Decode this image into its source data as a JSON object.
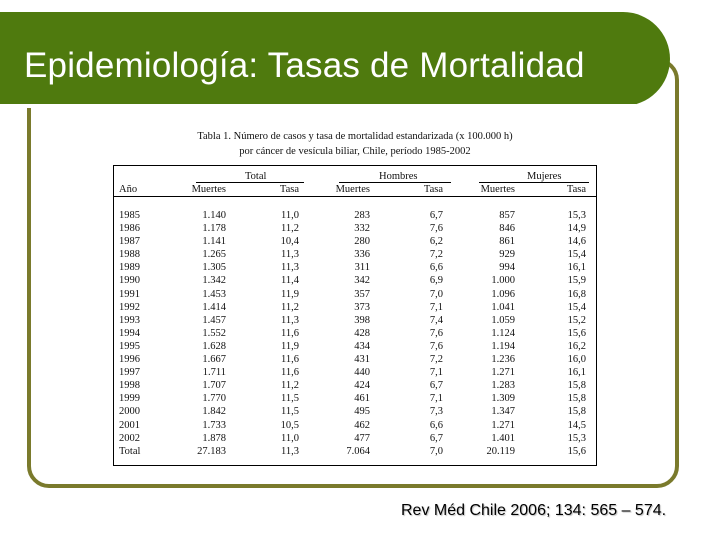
{
  "slide": {
    "title": "Epidemiología: Tasas de Mortalidad",
    "source": "Rev Méd Chile 2006; 134: 565 – 574."
  },
  "table": {
    "caption_line1": "Tabla 1. Número de casos y tasa de mortalidad estandarizada (x 100.000 h)",
    "caption_line2": "por cáncer de vesícula biliar, Chile, período 1985-2002",
    "group_headers": [
      "Total",
      "Hombres",
      "Mujeres"
    ],
    "column_headers": [
      "Año",
      "Muertes",
      "Tasa",
      "Muertes",
      "Tasa",
      "Muertes",
      "Tasa"
    ],
    "rows": [
      [
        "1985",
        "1.140",
        "11,0",
        "283",
        "6,7",
        "857",
        "15,3"
      ],
      [
        "1986",
        "1.178",
        "11,2",
        "332",
        "7,6",
        "846",
        "14,9"
      ],
      [
        "1987",
        "1.141",
        "10,4",
        "280",
        "6,2",
        "861",
        "14,6"
      ],
      [
        "1988",
        "1.265",
        "11,3",
        "336",
        "7,2",
        "929",
        "15,4"
      ],
      [
        "1989",
        "1.305",
        "11,3",
        "311",
        "6,6",
        "994",
        "16,1"
      ],
      [
        "1990",
        "1.342",
        "11,4",
        "342",
        "6,9",
        "1.000",
        "15,9"
      ],
      [
        "1991",
        "1.453",
        "11,9",
        "357",
        "7,0",
        "1.096",
        "16,8"
      ],
      [
        "1992",
        "1.414",
        "11,2",
        "373",
        "7,1",
        "1.041",
        "15,4"
      ],
      [
        "1993",
        "1.457",
        "11,3",
        "398",
        "7,4",
        "1.059",
        "15,2"
      ],
      [
        "1994",
        "1.552",
        "11,6",
        "428",
        "7,6",
        "1.124",
        "15,6"
      ],
      [
        "1995",
        "1.628",
        "11,9",
        "434",
        "7,6",
        "1.194",
        "16,2"
      ],
      [
        "1996",
        "1.667",
        "11,6",
        "431",
        "7,2",
        "1.236",
        "16,0"
      ],
      [
        "1997",
        "1.711",
        "11,6",
        "440",
        "7,1",
        "1.271",
        "16,1"
      ],
      [
        "1998",
        "1.707",
        "11,2",
        "424",
        "6,7",
        "1.283",
        "15,8"
      ],
      [
        "1999",
        "1.770",
        "11,5",
        "461",
        "7,1",
        "1.309",
        "15,8"
      ],
      [
        "2000",
        "1.842",
        "11,5",
        "495",
        "7,3",
        "1.347",
        "15,8"
      ],
      [
        "2001",
        "1.733",
        "10,5",
        "462",
        "6,6",
        "1.271",
        "14,5"
      ],
      [
        "2002",
        "1.878",
        "11,0",
        "477",
        "6,7",
        "1.401",
        "15,3"
      ],
      [
        "Total",
        "27.183",
        "11,3",
        "7.064",
        "7,0",
        "20.119",
        "15,6"
      ]
    ]
  },
  "colors": {
    "title_bar": "#4f7a0e",
    "frame_border": "#7a7a2c",
    "title_text": "#ffffff"
  }
}
